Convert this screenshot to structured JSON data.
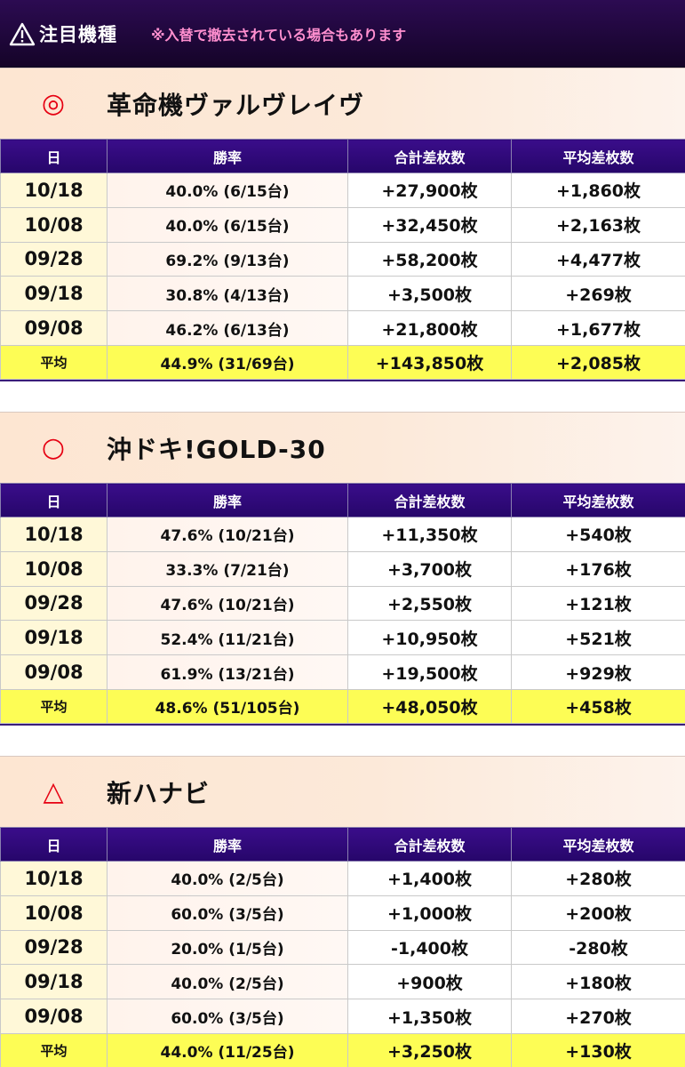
{
  "banner": {
    "icon": "warning-icon",
    "title": "注目機種",
    "note": "※入替で撤去されている場合もあります",
    "colors": {
      "background": "#1e0640",
      "note": "#ff8fcf"
    }
  },
  "columns": {
    "date": "日",
    "win_rate": "勝率",
    "total_diff": "合計差枚数",
    "avg_diff": "平均差枚数"
  },
  "machines": [
    {
      "mark": "◎",
      "name": "革命機ヴァルヴレイヴ",
      "rows": [
        {
          "date": "10/18",
          "win_rate": "40.0% (6/15台)",
          "total_diff": "+27,900枚",
          "avg_diff": "+1,860枚"
        },
        {
          "date": "10/08",
          "win_rate": "40.0% (6/15台)",
          "total_diff": "+32,450枚",
          "avg_diff": "+2,163枚"
        },
        {
          "date": "09/28",
          "win_rate": "69.2% (9/13台)",
          "total_diff": "+58,200枚",
          "avg_diff": "+4,477枚"
        },
        {
          "date": "09/18",
          "win_rate": "30.8% (4/13台)",
          "total_diff": "+3,500枚",
          "avg_diff": "+269枚"
        },
        {
          "date": "09/08",
          "win_rate": "46.2% (6/13台)",
          "total_diff": "+21,800枚",
          "avg_diff": "+1,677枚"
        }
      ],
      "average": {
        "label": "平均",
        "win_rate": "44.9% (31/69台)",
        "total_diff": "+143,850枚",
        "avg_diff": "+2,085枚"
      }
    },
    {
      "mark": "○",
      "name": "沖ドキ!GOLD-30",
      "rows": [
        {
          "date": "10/18",
          "win_rate": "47.6% (10/21台)",
          "total_diff": "+11,350枚",
          "avg_diff": "+540枚"
        },
        {
          "date": "10/08",
          "win_rate": "33.3% (7/21台)",
          "total_diff": "+3,700枚",
          "avg_diff": "+176枚"
        },
        {
          "date": "09/28",
          "win_rate": "47.6% (10/21台)",
          "total_diff": "+2,550枚",
          "avg_diff": "+121枚"
        },
        {
          "date": "09/18",
          "win_rate": "52.4% (11/21台)",
          "total_diff": "+10,950枚",
          "avg_diff": "+521枚"
        },
        {
          "date": "09/08",
          "win_rate": "61.9% (13/21台)",
          "total_diff": "+19,500枚",
          "avg_diff": "+929枚"
        }
      ],
      "average": {
        "label": "平均",
        "win_rate": "48.6% (51/105台)",
        "total_diff": "+48,050枚",
        "avg_diff": "+458枚"
      }
    },
    {
      "mark": "△",
      "name": "新ハナビ",
      "rows": [
        {
          "date": "10/18",
          "win_rate": "40.0% (2/5台)",
          "total_diff": "+1,400枚",
          "avg_diff": "+280枚"
        },
        {
          "date": "10/08",
          "win_rate": "60.0% (3/5台)",
          "total_diff": "+1,000枚",
          "avg_diff": "+200枚"
        },
        {
          "date": "09/28",
          "win_rate": "20.0% (1/5台)",
          "total_diff": "-1,400枚",
          "avg_diff": "-280枚"
        },
        {
          "date": "09/18",
          "win_rate": "40.0% (2/5台)",
          "total_diff": "+900枚",
          "avg_diff": "+180枚"
        },
        {
          "date": "09/08",
          "win_rate": "60.0% (3/5台)",
          "total_diff": "+1,350枚",
          "avg_diff": "+270枚"
        }
      ],
      "average": {
        "label": "平均",
        "win_rate": "44.0% (11/25台)",
        "total_diff": "+3,250枚",
        "avg_diff": "+130枚"
      }
    }
  ]
}
